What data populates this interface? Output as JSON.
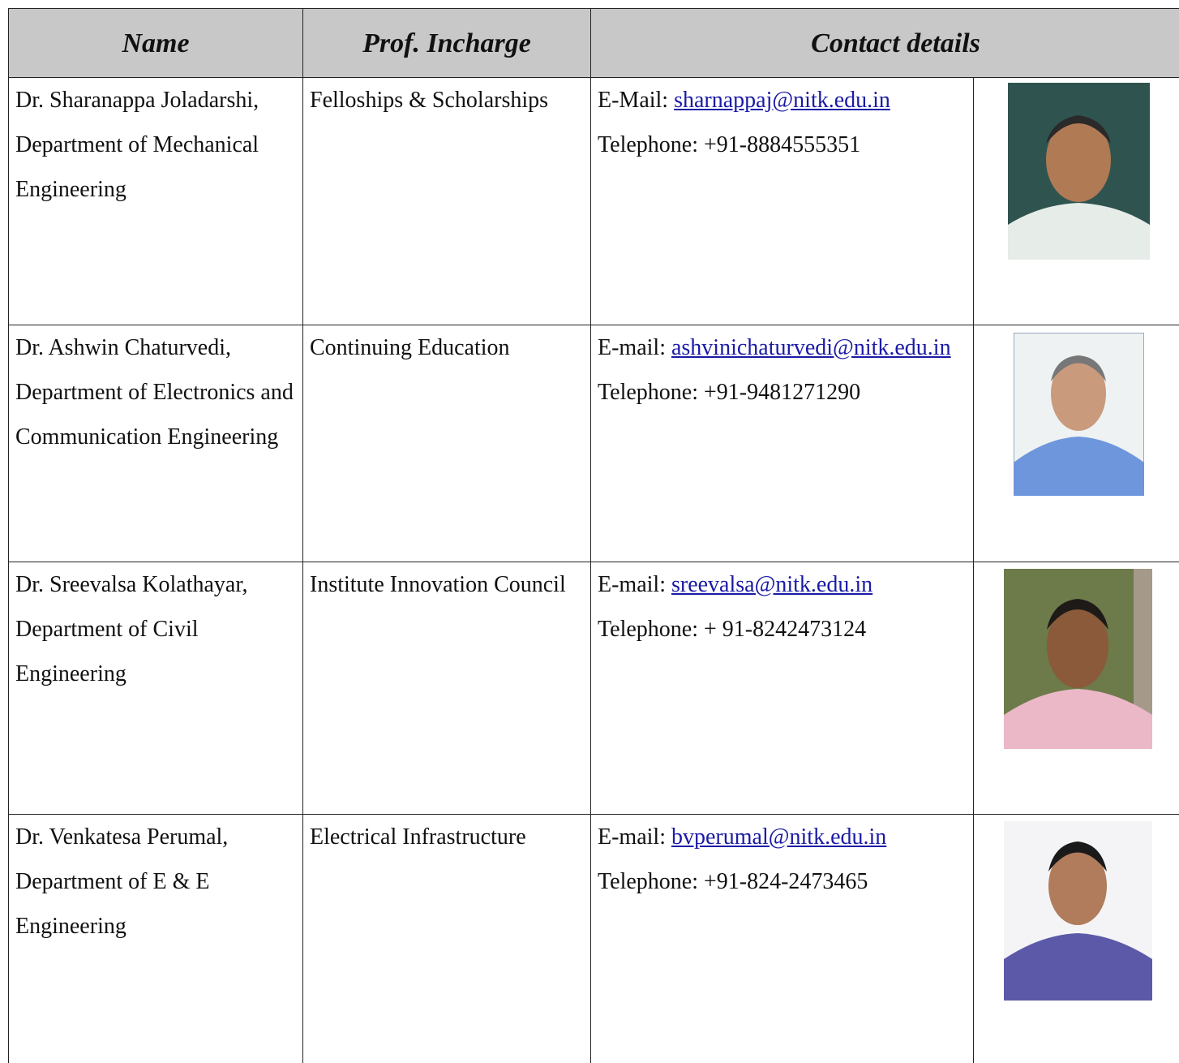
{
  "header": {
    "name": "Name",
    "incharge": "Prof. Incharge",
    "contact": "Contact details"
  },
  "rows": [
    {
      "name": "Dr. Sharanappa Joladarshi, Department of Mechanical Engineering",
      "incharge": "Felloships & Scholarships",
      "email_label": "E-Mail:",
      "email": "sharnappaj@nitk.edu.in",
      "telephone": "Telephone: +91-8884555351"
    },
    {
      "name": "Dr. Ashwin Chaturvedi, Department of Electronics and Communication Engineering",
      "incharge": "Continuing Education",
      "email_label": "E-mail:",
      "email": "ashvinichaturvedi@nitk.edu.in",
      "telephone": "Telephone: +91-9481271290"
    },
    {
      "name": "Dr. Sreevalsa Kolathayar, Department of Civil Engineering",
      "incharge": "Institute Innovation Council",
      "email_label": "E-mail:",
      "email": "sreevalsa@nitk.edu.in",
      "telephone": "Telephone: + 91-8242473124"
    },
    {
      "name": "Dr. Venkatesa Perumal, Department of E & E Engineering",
      "incharge": "Electrical Infrastructure",
      "email_label": "E-mail:",
      "email": "bvperumal@nitk.edu.in",
      "telephone": "Telephone: +91-824-2473465"
    }
  ]
}
